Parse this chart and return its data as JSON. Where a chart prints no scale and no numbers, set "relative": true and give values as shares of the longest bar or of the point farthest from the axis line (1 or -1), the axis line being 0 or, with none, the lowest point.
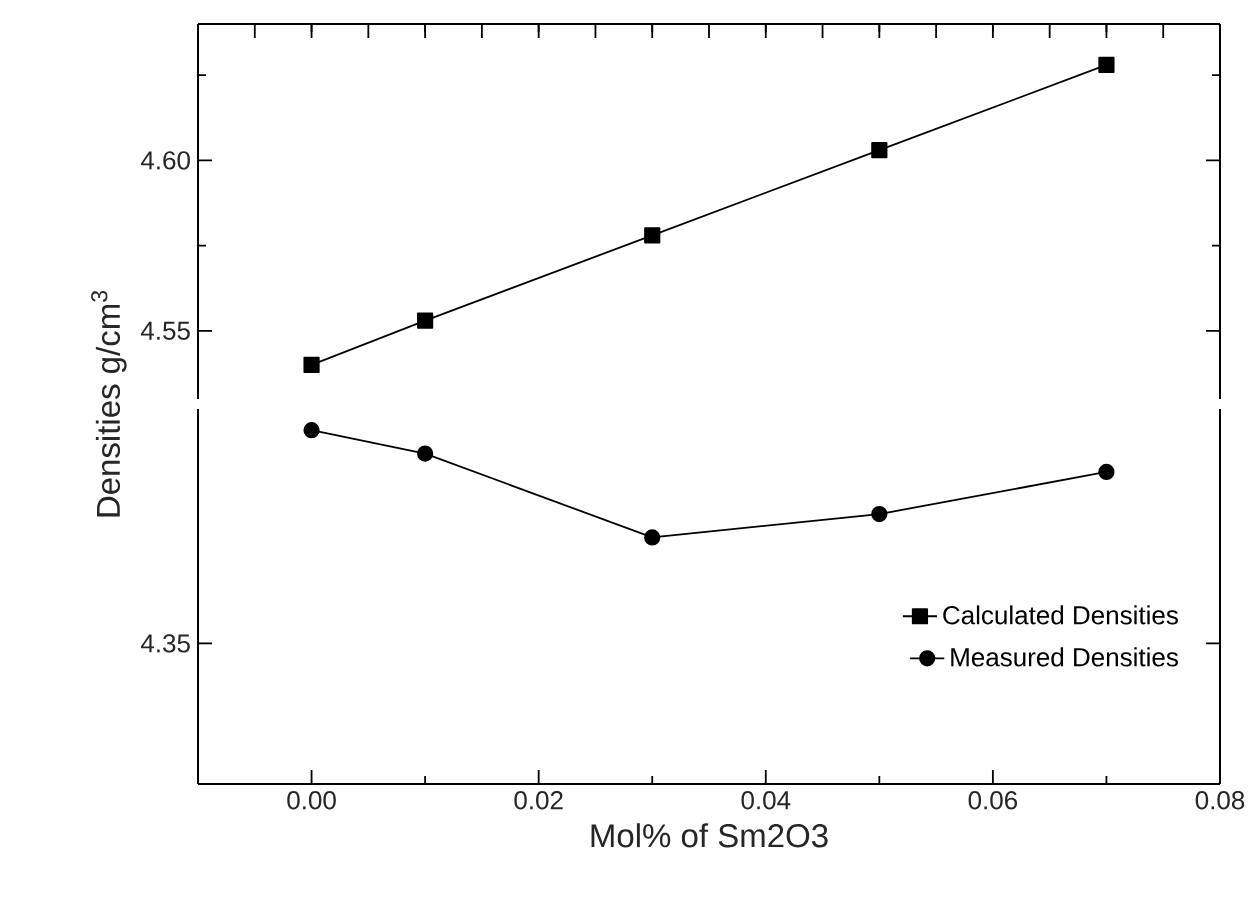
{
  "chart_data": [
    {
      "type": "line",
      "ylabel": "Densities g/cm$^{3}$",
      "line_style": "solid",
      "tick_labels": "y",
      "x": [
        0,
        0.01,
        0.03,
        0.05,
        0.07
      ],
      "xlim": [
        -0.01,
        0.08
      ],
      "xticks": [
        {
          "value": 0,
          "label": null
        },
        {
          "value": 0.01,
          "label": null
        },
        {
          "value": 0.02,
          "label": null
        },
        {
          "value": 0.03,
          "label": null
        },
        {
          "value": 0.04,
          "label": null
        },
        {
          "value": 0.05,
          "label": null
        },
        {
          "value": 0.06,
          "label": null
        },
        {
          "value": 0.07,
          "label": null
        },
        {
          "value": 0.08,
          "label": null
        }
      ],
      "legend": "bottom right",
      "ylim": [
        4.53,
        4.64
      ],
      "yticks": [
        {
          "value": 4.55,
          "label": "4.55"
        },
        {
          "value": 4.575,
          "label": null
        },
        {
          "value": 4.6,
          "label": "4.60"
        },
        {
          "value": 4.625,
          "label": null
        }
      ],
      "series": [
        {
          "name": "Calculated Densities",
          "color": "#000000",
          "marker": "square",
          "values": [
            4.54,
            4.553,
            4.578,
            4.603,
            4.628
          ]
        }
      ]
    },
    {
      "type": "line",
      "xlabel": "Mol% of Sm2O3",
      "line_style": "solid",
      "legend": "bottom right",
      "x": [
        0,
        0.01,
        0.03,
        0.05,
        0.07
      ],
      "xlim": [
        -0.01,
        0.08
      ],
      "xticks": [
        {
          "value": 0,
          "label": "0.00"
        },
        {
          "value": 0.01,
          "label": null
        },
        {
          "value": 0.02,
          "label": "0.02"
        },
        {
          "value": 0.03,
          "label": null
        },
        {
          "value": 0.04,
          "label": "0.04"
        },
        {
          "value": 0.05,
          "label": null
        },
        {
          "value": 0.06,
          "label": "0.06"
        },
        {
          "value": 0.07,
          "label": null
        },
        {
          "value": 0.08,
          "label": "0.08"
        }
      ],
      "relative": true,
      "annotations": [
        "4.35"
      ],
      "series": [
        {
          "name": "Measured Densities",
          "color": "#000000",
          "marker": "circle",
          "values": [
            1,
            0.934,
            0.697,
            0.763,
            0.882
          ]
        }
      ]
    }
  ]
}
